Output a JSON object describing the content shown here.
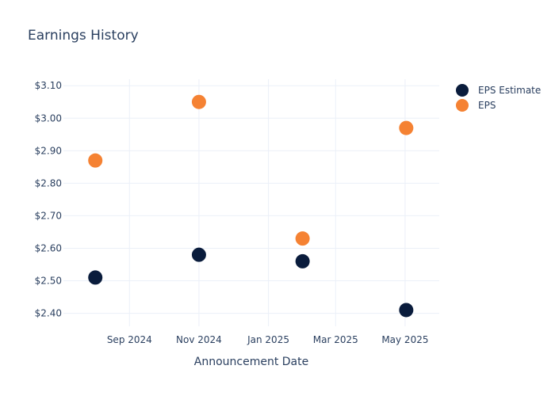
{
  "chart_data": {
    "type": "scatter",
    "title": "Earnings History",
    "xlabel": "Announcement Date",
    "ylabel": "",
    "x_tick_labels": [
      {
        "date": "2024-09-01",
        "label": "Sep 2024"
      },
      {
        "date": "2024-11-01",
        "label": "Nov 2024"
      },
      {
        "date": "2025-01-01",
        "label": "Jan 2025"
      },
      {
        "date": "2025-03-01",
        "label": "Mar 2025"
      },
      {
        "date": "2025-05-01",
        "label": "May 2025"
      }
    ],
    "x_range": [
      "2024-07-05",
      "2025-05-31"
    ],
    "y_ticks": [
      2.4,
      2.5,
      2.6,
      2.7,
      2.8,
      2.9,
      3.0,
      3.1
    ],
    "y_tick_labels": [
      "$2.40",
      "$2.50",
      "$2.60",
      "$2.70",
      "$2.80",
      "$2.90",
      "$3.00",
      "$3.10"
    ],
    "ylim": [
      2.36,
      3.12
    ],
    "grid": true,
    "legend_position": "top-right",
    "series": [
      {
        "name": "EPS Estimate",
        "color": "#0a1c3c",
        "points": [
          {
            "x": "2024-08-02",
            "y": 2.51
          },
          {
            "x": "2024-11-01",
            "y": 2.58
          },
          {
            "x": "2025-01-31",
            "y": 2.56
          },
          {
            "x": "2025-05-02",
            "y": 2.41
          }
        ]
      },
      {
        "name": "EPS",
        "color": "#f58233",
        "points": [
          {
            "x": "2024-08-02",
            "y": 2.87
          },
          {
            "x": "2024-11-01",
            "y": 3.05
          },
          {
            "x": "2025-01-31",
            "y": 2.63
          },
          {
            "x": "2025-05-02",
            "y": 2.97
          }
        ]
      }
    ]
  }
}
